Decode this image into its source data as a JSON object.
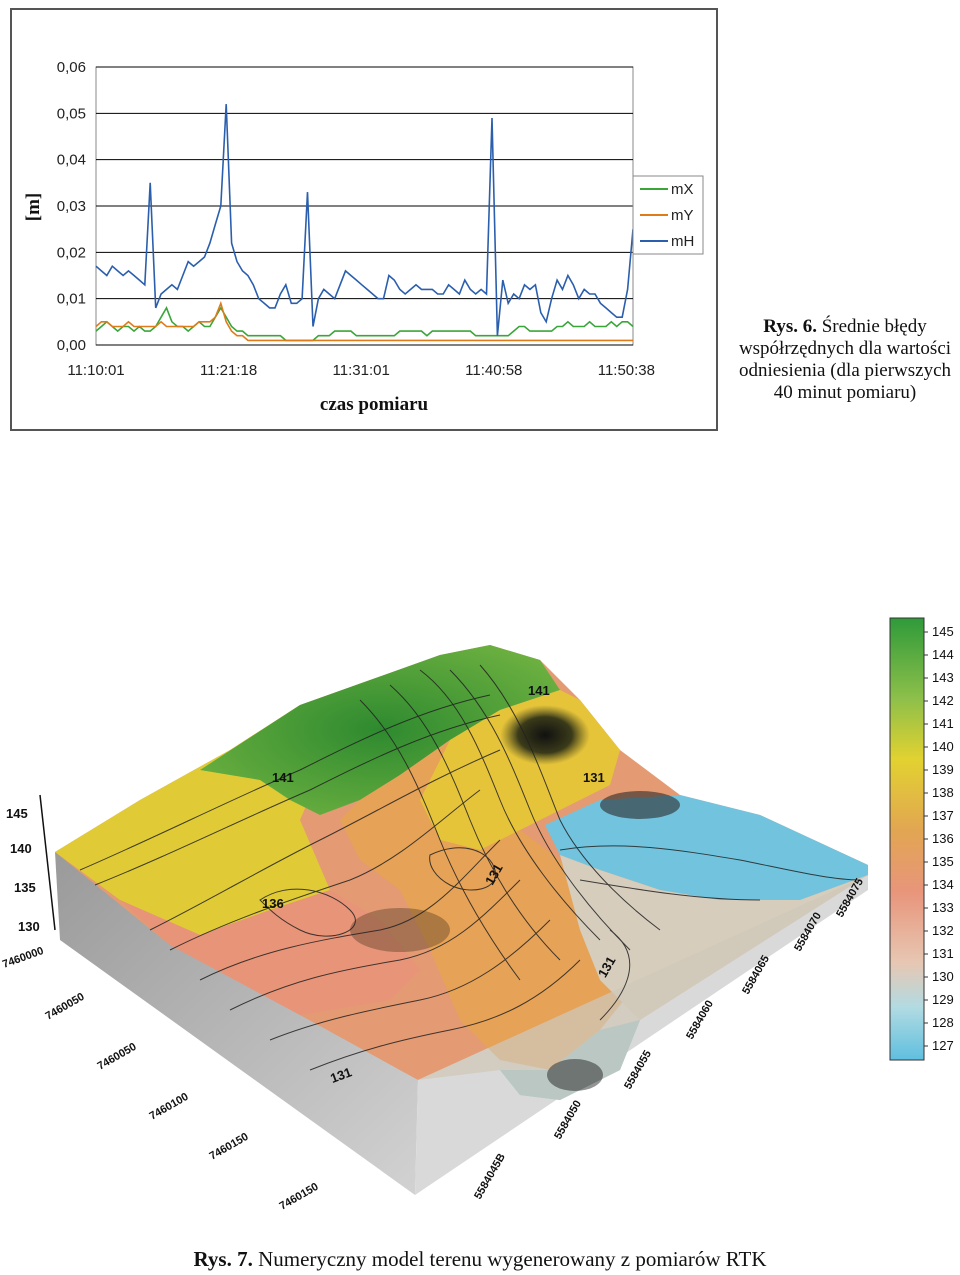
{
  "figure6": {
    "caption_label": "Rys. 6.",
    "caption_text": "Średnie błędy współrzędnych dla wartości odniesienia (dla pierwszych 40 minut pomiaru)"
  },
  "chart_data": {
    "type": "line",
    "title": "",
    "xlabel": "czas pomiaru",
    "ylabel": "[m]",
    "ylim": [
      0,
      0.06
    ],
    "y_ticks": [
      "0,00",
      "0,01",
      "0,02",
      "0,03",
      "0,04",
      "0,05",
      "0,06"
    ],
    "x_ticks": [
      "11:10:01",
      "11:21:18",
      "11:31:01",
      "11:40:58",
      "11:50:38"
    ],
    "grid": true,
    "legend_position": "right",
    "series": [
      {
        "name": "mX",
        "color": "#3aa63a",
        "values": [
          0.003,
          0.004,
          0.005,
          0.004,
          0.003,
          0.004,
          0.004,
          0.003,
          0.004,
          0.003,
          0.003,
          0.004,
          0.006,
          0.008,
          0.005,
          0.004,
          0.004,
          0.003,
          0.004,
          0.005,
          0.004,
          0.004,
          0.006,
          0.008,
          0.006,
          0.004,
          0.003,
          0.003,
          0.002,
          0.002,
          0.002,
          0.002,
          0.002,
          0.002,
          0.002,
          0.001,
          0.001,
          0.001,
          0.001,
          0.001,
          0.001,
          0.002,
          0.002,
          0.002,
          0.003,
          0.003,
          0.003,
          0.003,
          0.002,
          0.002,
          0.002,
          0.002,
          0.002,
          0.002,
          0.002,
          0.002,
          0.003,
          0.003,
          0.003,
          0.003,
          0.003,
          0.002,
          0.003,
          0.003,
          0.003,
          0.003,
          0.003,
          0.003,
          0.003,
          0.003,
          0.002,
          0.002,
          0.002,
          0.002,
          0.002,
          0.002,
          0.002,
          0.003,
          0.004,
          0.004,
          0.003,
          0.003,
          0.003,
          0.003,
          0.003,
          0.004,
          0.004,
          0.005,
          0.004,
          0.004,
          0.004,
          0.005,
          0.004,
          0.004,
          0.004,
          0.005,
          0.004,
          0.005,
          0.005,
          0.004
        ]
      },
      {
        "name": "mY",
        "color": "#e07b1a",
        "values": [
          0.004,
          0.005,
          0.005,
          0.004,
          0.004,
          0.004,
          0.005,
          0.004,
          0.004,
          0.004,
          0.004,
          0.004,
          0.005,
          0.004,
          0.004,
          0.004,
          0.004,
          0.004,
          0.004,
          0.005,
          0.005,
          0.005,
          0.006,
          0.009,
          0.005,
          0.003,
          0.002,
          0.002,
          0.001,
          0.001,
          0.001,
          0.001,
          0.001,
          0.001,
          0.001,
          0.001,
          0.001,
          0.001,
          0.001,
          0.001,
          0.001,
          0.001,
          0.001,
          0.001,
          0.001,
          0.001,
          0.001,
          0.001,
          0.001,
          0.001,
          0.001,
          0.001,
          0.001,
          0.001,
          0.001,
          0.001,
          0.001,
          0.001,
          0.001,
          0.001,
          0.001,
          0.001,
          0.001,
          0.001,
          0.001,
          0.001,
          0.001,
          0.001,
          0.001,
          0.001,
          0.001,
          0.001,
          0.001,
          0.001,
          0.001,
          0.001,
          0.001,
          0.001,
          0.001,
          0.001,
          0.001,
          0.001,
          0.001,
          0.001,
          0.001,
          0.001,
          0.001,
          0.001,
          0.001,
          0.001,
          0.001,
          0.001,
          0.001,
          0.001,
          0.001,
          0.001,
          0.001,
          0.001,
          0.001,
          0.001
        ]
      },
      {
        "name": "mH",
        "color": "#2b5fad",
        "values": [
          0.017,
          0.016,
          0.015,
          0.017,
          0.016,
          0.015,
          0.016,
          0.015,
          0.014,
          0.013,
          0.035,
          0.008,
          0.011,
          0.012,
          0.013,
          0.012,
          0.015,
          0.018,
          0.017,
          0.018,
          0.019,
          0.022,
          0.026,
          0.03,
          0.052,
          0.022,
          0.018,
          0.016,
          0.015,
          0.013,
          0.01,
          0.009,
          0.008,
          0.008,
          0.011,
          0.013,
          0.009,
          0.009,
          0.01,
          0.033,
          0.004,
          0.01,
          0.012,
          0.011,
          0.01,
          0.013,
          0.016,
          0.015,
          0.014,
          0.013,
          0.012,
          0.011,
          0.01,
          0.01,
          0.015,
          0.014,
          0.012,
          0.011,
          0.012,
          0.013,
          0.012,
          0.012,
          0.012,
          0.011,
          0.011,
          0.013,
          0.012,
          0.011,
          0.014,
          0.012,
          0.011,
          0.012,
          0.011,
          0.049,
          0.002,
          0.014,
          0.009,
          0.011,
          0.01,
          0.013,
          0.012,
          0.013,
          0.007,
          0.005,
          0.01,
          0.014,
          0.012,
          0.015,
          0.013,
          0.01,
          0.012,
          0.011,
          0.011,
          0.009,
          0.008,
          0.007,
          0.006,
          0.006,
          0.012,
          0.025
        ]
      }
    ]
  },
  "figure7": {
    "caption_label": "Rys. 7.",
    "caption_text": "Numeryczny model terenu wygenerowany  z pomiarów RTK",
    "colorscale": {
      "labels": [
        "145",
        "144",
        "143",
        "142",
        "141",
        "140",
        "139",
        "138",
        "137",
        "136",
        "135",
        "134",
        "133",
        "132",
        "131",
        "130",
        "129",
        "128",
        "127"
      ],
      "colors": [
        "#3b9a3a",
        "#4aa43d",
        "#5eaf44",
        "#86bc4a",
        "#b3c84c",
        "#d8cc3a",
        "#e7cf2f",
        "#e6c042",
        "#e2ad4e",
        "#e39c5b",
        "#e79070",
        "#e9997a",
        "#e8a98c",
        "#e7b9a1",
        "#e6c8b4",
        "#d7d6c8",
        "#b8dbe0",
        "#8fd0e3",
        "#69c3e0"
      ]
    },
    "z_axis_labels": [
      "145",
      "140",
      "135",
      "130"
    ],
    "x_axis_labels": [
      "7460000",
      "7460050",
      "7460050",
      "7460100",
      "7460150"
    ],
    "y_axis_labels": [
      "5584045B",
      "5584050",
      "5584055",
      "5584060",
      "5584065",
      "5584070",
      "5584075"
    ],
    "contour_labels": [
      "141",
      "141",
      "136",
      "131",
      "131",
      "131",
      "131"
    ]
  }
}
